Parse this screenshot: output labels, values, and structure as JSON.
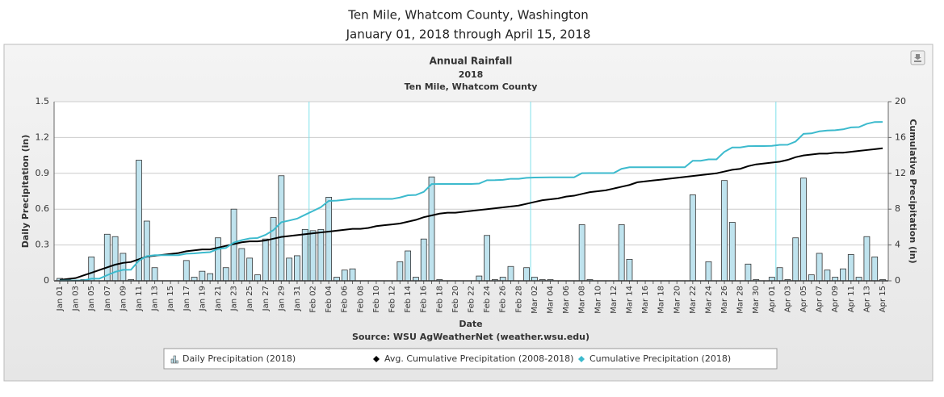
{
  "header": {
    "title": "Ten Mile, Whatcom County, Washington",
    "subtitle": "January 01, 2018 through April 15, 2018"
  },
  "chart_data": {
    "type": "combo",
    "title": "Annual Rainfall",
    "subtitle": "2018",
    "location": "Ten Mile, Whatcom County",
    "x_label": "Date",
    "y_label": "Daily Precipitation (in)",
    "y2_label": "Cumulative Precipitation (in)",
    "source": "Source:  WSU AgWeatherNet (weather.wsu.edu)",
    "categories": [
      "Jan 01",
      null,
      "Jan 03",
      null,
      "Jan 05",
      null,
      "Jan 07",
      null,
      "Jan 09",
      null,
      "Jan 11",
      null,
      "Jan 13",
      null,
      "Jan 15",
      null,
      "Jan 17",
      null,
      "Jan 19",
      null,
      "Jan 21",
      null,
      "Jan 23",
      null,
      "Jan 25",
      null,
      "Jan 27",
      null,
      "Jan 29",
      null,
      "Jan 31",
      null,
      "Feb 02",
      null,
      "Feb 04",
      null,
      "Feb 06",
      null,
      "Feb 08",
      null,
      "Feb 10",
      null,
      "Feb 12",
      null,
      "Feb 14",
      null,
      "Feb 16",
      null,
      "Feb 18",
      null,
      "Feb 20",
      null,
      "Feb 22",
      null,
      "Feb 24",
      null,
      "Feb 26",
      null,
      "Feb 28",
      null,
      "Mar 02",
      null,
      "Mar 04",
      null,
      "Mar 06",
      null,
      "Mar 08",
      null,
      "Mar 10",
      null,
      "Mar 12",
      null,
      "Mar 14",
      null,
      "Mar 16",
      null,
      "Mar 18",
      null,
      "Mar 20",
      null,
      "Mar 22",
      null,
      "Mar 24",
      null,
      "Mar 26",
      null,
      "Mar 28",
      null,
      "Mar 30",
      null,
      "Apr 01",
      null,
      "Apr 03",
      null,
      "Apr 05",
      null,
      "Apr 07",
      null,
      "Apr 09",
      null,
      "Apr 11",
      null,
      "Apr 13",
      null,
      "Apr 15"
    ],
    "series": [
      {
        "name": "Daily Precipitation (2018)",
        "type": "bar",
        "color": "#bfe3ee",
        "values": [
          0.02,
          0.01,
          0,
          0.01,
          0.2,
          0,
          0.39,
          0.37,
          0.23,
          0.01,
          1.01,
          0.5,
          0.11,
          0,
          0,
          0,
          0.17,
          0.03,
          0.08,
          0.06,
          0.36,
          0.11,
          0.6,
          0.27,
          0.19,
          0.05,
          0.35,
          0.53,
          0.88,
          0.19,
          0.21,
          0.43,
          0.42,
          0.43,
          0.7,
          0.03,
          0.09,
          0.1,
          0,
          0,
          0,
          0,
          0,
          0.16,
          0.25,
          0.03,
          0.35,
          0.87,
          0.01,
          0,
          0,
          0,
          0,
          0.04,
          0.38,
          0.01,
          0.03,
          0.12,
          0,
          0.11,
          0.03,
          0.01,
          0.01,
          0,
          0,
          0,
          0.47,
          0.01,
          0,
          0,
          0,
          0.47,
          0.18,
          0,
          0,
          0,
          0,
          0,
          0,
          0,
          0.72,
          0,
          0.16,
          0,
          0.84,
          0.49,
          0,
          0.14,
          0.01,
          0,
          0.03,
          0.11,
          0.01,
          0.36,
          0.86,
          0.05,
          0.23,
          0.09,
          0.03,
          0.1,
          0.22,
          0.03,
          0.37,
          0.2,
          0.01
        ]
      },
      {
        "name": "Avg. Cumulative Precipitation (2008-2018)",
        "type": "line",
        "axis": "y2",
        "color": "#000000",
        "values": [
          0.1,
          0.2,
          0.3,
          0.6,
          0.9,
          1.2,
          1.5,
          1.8,
          2.0,
          2.1,
          2.4,
          2.7,
          2.8,
          2.9,
          3.0,
          3.1,
          3.3,
          3.4,
          3.5,
          3.5,
          3.7,
          3.9,
          4.1,
          4.3,
          4.4,
          4.4,
          4.5,
          4.7,
          4.9,
          5.0,
          5.1,
          5.2,
          5.3,
          5.4,
          5.5,
          5.6,
          5.7,
          5.8,
          5.8,
          5.9,
          6.1,
          6.2,
          6.3,
          6.4,
          6.6,
          6.8,
          7.1,
          7.3,
          7.5,
          7.6,
          7.6,
          7.7,
          7.8,
          7.9,
          8.0,
          8.1,
          8.2,
          8.3,
          8.4,
          8.6,
          8.8,
          9.0,
          9.1,
          9.2,
          9.4,
          9.5,
          9.7,
          9.9,
          10.0,
          10.1,
          10.3,
          10.5,
          10.7,
          11.0,
          11.1,
          11.2,
          11.3,
          11.4,
          11.5,
          11.6,
          11.7,
          11.8,
          11.9,
          12.0,
          12.2,
          12.4,
          12.5,
          12.8,
          13.0,
          13.1,
          13.2,
          13.3,
          13.5,
          13.8,
          14.0,
          14.1,
          14.2,
          14.2,
          14.3,
          14.3,
          14.4,
          14.5,
          14.6,
          14.7,
          14.8
        ]
      },
      {
        "name": "Cumulative Precipitation (2018)",
        "type": "line",
        "axis": "y2",
        "color": "#3cbacd",
        "values": [
          0.02,
          0.03,
          0.03,
          0.04,
          0.24,
          0.24,
          0.63,
          1.0,
          1.23,
          1.24,
          2.25,
          2.75,
          2.86,
          2.86,
          2.86,
          2.86,
          3.03,
          3.06,
          3.14,
          3.2,
          3.56,
          3.67,
          4.27,
          4.54,
          4.73,
          4.78,
          5.13,
          5.66,
          6.54,
          6.73,
          6.94,
          7.37,
          7.79,
          8.22,
          8.92,
          8.95,
          9.04,
          9.14,
          9.14,
          9.14,
          9.14,
          9.14,
          9.14,
          9.3,
          9.55,
          9.58,
          9.93,
          10.8,
          10.81,
          10.81,
          10.81,
          10.81,
          10.81,
          10.85,
          11.23,
          11.24,
          11.27,
          11.39,
          11.39,
          11.5,
          11.53,
          11.54,
          11.55,
          11.55,
          11.55,
          11.55,
          12.02,
          12.03,
          12.03,
          12.03,
          12.03,
          12.5,
          12.68,
          12.68,
          12.68,
          12.68,
          12.68,
          12.68,
          12.68,
          12.68,
          13.4,
          13.4,
          13.56,
          13.56,
          14.4,
          14.89,
          14.89,
          15.03,
          15.04,
          15.04,
          15.07,
          15.18,
          15.19,
          15.55,
          16.41,
          16.46,
          16.69,
          16.78,
          16.81,
          16.91,
          17.13,
          17.16,
          17.53,
          17.73,
          17.74
        ]
      }
    ],
    "ylim": [
      0,
      1.5
    ],
    "yticks": [
      0,
      0.3,
      0.6,
      0.9,
      1.2,
      1.5
    ],
    "y2lim": [
      0,
      20
    ],
    "y2ticks": [
      0,
      4,
      8,
      12,
      16,
      20
    ],
    "grid": true
  }
}
